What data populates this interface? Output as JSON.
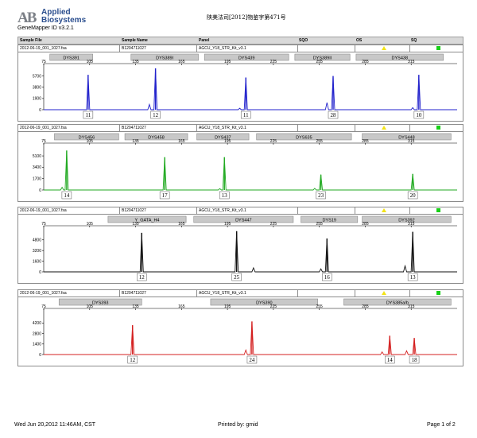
{
  "header": {
    "logo_mark": "AB",
    "brand_line1": "Applied",
    "brand_line2": "Biosystems",
    "software_version": "GeneMapper ID v3.2.1",
    "case_number": "陕美法司[2012]物鉴字第471号"
  },
  "table_header": {
    "sample_file": "Sample File",
    "sample_name": "Sample Name",
    "panel": "Panel",
    "sqo": "SQO",
    "os": "OS",
    "sq": "SQ"
  },
  "colors": {
    "blue": "#2222cc",
    "green": "#22aa22",
    "black": "#111111",
    "red": "#d42020",
    "os_flag": "#f3e317",
    "sq_flag": "#18d018",
    "marker_box": "#c8c8c8"
  },
  "footer": {
    "timestamp": "Wed Jun 20,2012 11:46AM, CST",
    "printed_by": "Printed by: gmid",
    "page": "Page 1 of 2"
  },
  "chart_data": [
    {
      "type": "line",
      "sample_file": "2012-06-19_001_1027.fsa",
      "sample_name": "B1204711027",
      "panel_name": "AGCU_Y18_STR_Kit_v3.1",
      "dye": "blue",
      "x_ticks": [
        75,
        105,
        135,
        165,
        195,
        225,
        255,
        285,
        315
      ],
      "y_ticks": [
        0,
        1900,
        3800,
        5700
      ],
      "xlim": [
        75,
        345
      ],
      "ylim": [
        0,
        7000
      ],
      "markers": [
        {
          "name": "DYS391",
          "start": 79,
          "end": 107
        },
        {
          "name": "DYS389I",
          "start": 132,
          "end": 176
        },
        {
          "name": "DYS439",
          "start": 180,
          "end": 235
        },
        {
          "name": "DYS389II",
          "start": 239,
          "end": 275
        },
        {
          "name": "DYS438",
          "start": 279,
          "end": 336
        }
      ],
      "peaks": [
        {
          "x": 104,
          "height": 5900,
          "allele": "11"
        },
        {
          "x": 148,
          "height": 7000,
          "allele": "12"
        },
        {
          "x": 207,
          "height": 5450,
          "allele": "11"
        },
        {
          "x": 264,
          "height": 5700,
          "allele": "28"
        },
        {
          "x": 320,
          "height": 5900,
          "allele": "10"
        }
      ],
      "stutters": [
        {
          "x": 144,
          "height": 900
        },
        {
          "x": 203,
          "height": 250
        },
        {
          "x": 260,
          "height": 1200
        },
        {
          "x": 316,
          "height": 350
        }
      ]
    },
    {
      "type": "line",
      "sample_file": "2012-06-19_001_1027.fsa",
      "sample_name": "B1204711027",
      "panel_name": "AGCU_Y18_STR_Kit_v3.1",
      "dye": "green",
      "x_ticks": [
        75,
        105,
        135,
        165,
        195,
        225,
        255,
        285,
        315
      ],
      "y_ticks": [
        0,
        1700,
        3400,
        5100
      ],
      "xlim": [
        75,
        345
      ],
      "ylim": [
        0,
        6300
      ],
      "markers": [
        {
          "name": "DYS456",
          "start": 82,
          "end": 124
        },
        {
          "name": "DYS458",
          "start": 128,
          "end": 169
        },
        {
          "name": "DYS437",
          "start": 175,
          "end": 209
        },
        {
          "name": "DYS635",
          "start": 214,
          "end": 276
        },
        {
          "name": "DYS448",
          "start": 283,
          "end": 341
        }
      ],
      "peaks": [
        {
          "x": 90,
          "height": 5900,
          "allele": "14"
        },
        {
          "x": 154,
          "height": 4900,
          "allele": "17"
        },
        {
          "x": 193,
          "height": 4900,
          "allele": "13"
        },
        {
          "x": 256,
          "height": 2300,
          "allele": "23"
        },
        {
          "x": 316,
          "height": 2400,
          "allele": "20"
        }
      ],
      "stutters": [
        {
          "x": 87,
          "height": 400
        },
        {
          "x": 190,
          "height": 200
        },
        {
          "x": 252,
          "height": 250
        }
      ]
    },
    {
      "type": "line",
      "sample_file": "2012-06-19_001_1027.fsa",
      "sample_name": "B1204711027",
      "panel_name": "AGCU_Y18_STR_Kit_v3.1",
      "dye": "black",
      "x_ticks": [
        75,
        105,
        135,
        165,
        195,
        225,
        255,
        285,
        315
      ],
      "y_ticks": [
        0,
        1600,
        3200,
        4800
      ],
      "xlim": [
        75,
        345
      ],
      "ylim": [
        0,
        6200
      ],
      "markers": [
        {
          "name": "Y_GATA_H4",
          "start": 117,
          "end": 168
        },
        {
          "name": "DYS447",
          "start": 173,
          "end": 238
        },
        {
          "name": "DYS19",
          "start": 243,
          "end": 280
        },
        {
          "name": "DYS392",
          "start": 283,
          "end": 341
        }
      ],
      "peaks": [
        {
          "x": 139,
          "height": 5850,
          "allele": "12"
        },
        {
          "x": 201,
          "height": 6100,
          "allele": "25"
        },
        {
          "x": 260,
          "height": 5000,
          "allele": "16"
        },
        {
          "x": 316,
          "height": 6000,
          "allele": "13"
        }
      ],
      "stutters": [
        {
          "x": 212,
          "height": 600
        },
        {
          "x": 256,
          "height": 450
        },
        {
          "x": 311,
          "height": 900
        }
      ]
    },
    {
      "type": "line",
      "sample_file": "2012-06-19_001_1027.fsa",
      "sample_name": "B1204711027",
      "panel_name": "AGCU_Y18_STR_Kit_v3.1",
      "dye": "red",
      "x_ticks": [
        75,
        105,
        135,
        165,
        195,
        225,
        255,
        285,
        315
      ],
      "y_ticks": [
        0,
        1400,
        2800,
        4200
      ],
      "xlim": [
        75,
        345
      ],
      "ylim": [
        0,
        5500
      ],
      "markers": [
        {
          "name": "DYS393",
          "start": 85,
          "end": 139
        },
        {
          "name": "DYS390",
          "start": 184,
          "end": 254
        },
        {
          "name": "DYS385a/b",
          "start": 271,
          "end": 341
        }
      ],
      "peaks": [
        {
          "x": 133,
          "height": 3900,
          "allele": "12"
        },
        {
          "x": 211,
          "height": 4400,
          "allele": "24"
        },
        {
          "x": 301,
          "height": 2500,
          "allele": "14"
        },
        {
          "x": 317,
          "height": 2200,
          "allele": "18"
        }
      ],
      "stutters": [
        {
          "x": 207,
          "height": 600
        },
        {
          "x": 296,
          "height": 350
        },
        {
          "x": 312,
          "height": 500
        }
      ]
    }
  ]
}
